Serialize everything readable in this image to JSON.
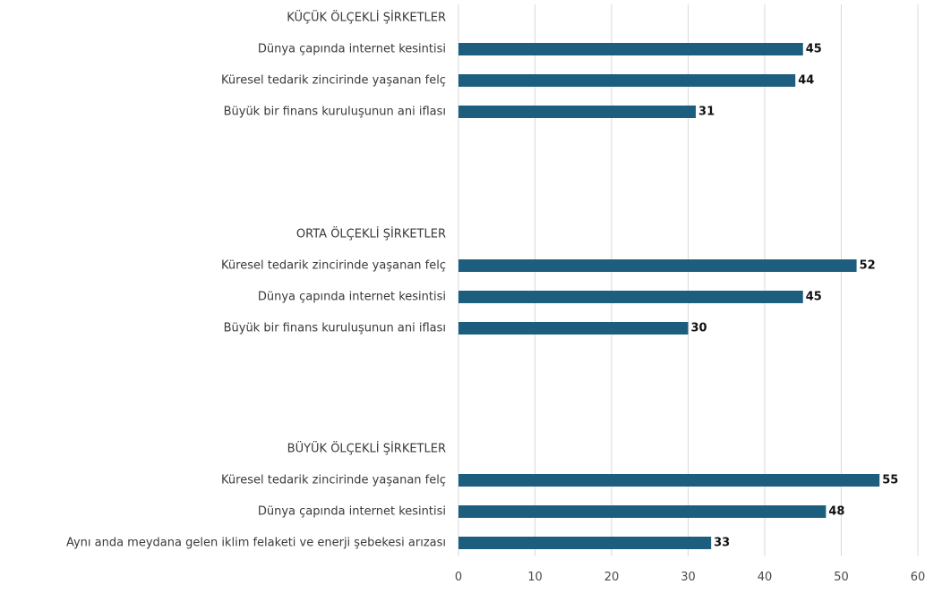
{
  "chart_data": {
    "type": "bar",
    "orientation": "horizontal",
    "bar_color": "#1d5e7e",
    "grid_color": "#d9d9d9",
    "xlim": [
      0,
      60
    ],
    "x_ticks": [
      0,
      10,
      20,
      30,
      40,
      50,
      60
    ],
    "grid": true,
    "groups": [
      {
        "label": "KÜÇÜK ÖLÇEKLİ ŞİRKETLER",
        "items": [
          {
            "label": "Dünya çapında internet kesintisi",
            "value": 45
          },
          {
            "label": "Küresel tedarik zincirinde yaşanan felç",
            "value": 44
          },
          {
            "label": "Büyük bir finans kuruluşunun ani iflası",
            "value": 31
          }
        ]
      },
      {
        "label": "ORTA ÖLÇEKLİ ŞİRKETLER",
        "items": [
          {
            "label": "Küresel tedarik zincirinde yaşanan felç",
            "value": 52
          },
          {
            "label": "Dünya çapında internet kesintisi",
            "value": 45
          },
          {
            "label": "Büyük bir finans kuruluşunun ani iflası",
            "value": 30
          }
        ]
      },
      {
        "label": "BÜYÜK ÖLÇEKLİ ŞİRKETLER",
        "items": [
          {
            "label": "Küresel tedarik zincirinde yaşanan felç",
            "value": 55
          },
          {
            "label": "Dünya çapında internet kesintisi",
            "value": 48
          },
          {
            "label": "Aynı anda meydana gelen iklim felaketi ve enerji şebekesi arızası",
            "value": 33
          }
        ]
      }
    ]
  }
}
